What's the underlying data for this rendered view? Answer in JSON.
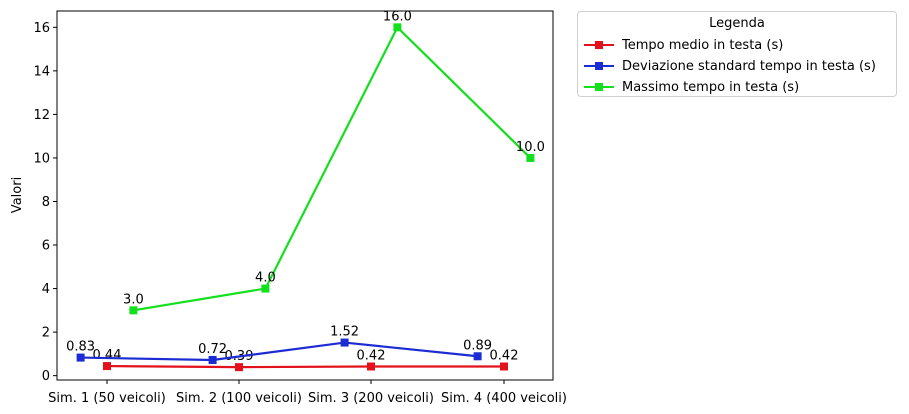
{
  "chart_data": {
    "type": "line",
    "title": "",
    "xlabel": "",
    "ylabel": "Valori",
    "ylim": [
      -0.2,
      16.75
    ],
    "yticks": [
      0,
      2,
      4,
      6,
      8,
      10,
      12,
      14,
      16
    ],
    "categories": [
      "Sim. 1 (50 veicoli)",
      "Sim. 2 (100 veicoli)",
      "Sim. 3 (200 veicoli)",
      "Sim. 4 (400 veicoli)"
    ],
    "grid": false,
    "legend_position": "outside-top-right",
    "legend_title": "Legenda",
    "series": [
      {
        "name": "Tempo medio in testa (s)",
        "color": "#e3111b",
        "marker": "square",
        "offset": 0,
        "values": [
          0.44,
          0.39,
          0.42,
          0.42
        ],
        "labels": [
          "0.44",
          "0.39",
          "0.42",
          "0.42"
        ]
      },
      {
        "name": "Deviazione standard tempo in testa (s)",
        "color": "#1c2bd2",
        "marker": "square",
        "offset": -0.2,
        "values": [
          0.83,
          0.72,
          1.52,
          0.89
        ],
        "labels": [
          "0.83",
          "0.72",
          "1.52",
          "0.89"
        ]
      },
      {
        "name": "Massimo tempo in testa (s)",
        "color": "#13e01c",
        "marker": "square",
        "offset": 0.2,
        "values": [
          3.0,
          4.0,
          16.0,
          10.0
        ],
        "labels": [
          "3.0",
          "4.0",
          "16.0",
          "10.0"
        ]
      }
    ]
  }
}
